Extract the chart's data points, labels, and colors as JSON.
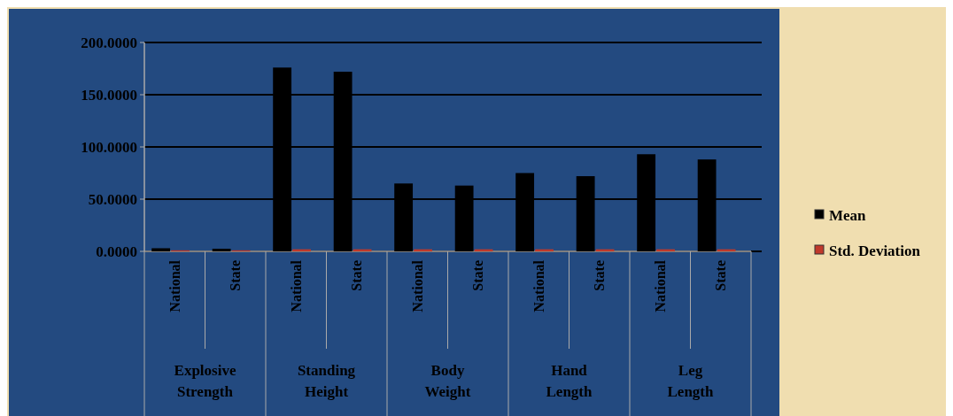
{
  "chart_data": {
    "type": "bar",
    "categories": [
      "National",
      "State",
      "National",
      "State",
      "National",
      "State",
      "National",
      "State",
      "National",
      "State"
    ],
    "annotations": [
      "Explosive Strength",
      "Standing Height",
      "Body Weight",
      "Hand Length",
      "Leg Length"
    ],
    "series": [
      {
        "name": "Mean",
        "color": "#000000",
        "values": [
          3,
          2.5,
          176,
          172,
          65,
          63,
          75,
          72,
          93,
          88
        ]
      },
      {
        "name": "Std. Deviation",
        "color": "#c0392b",
        "values": [
          1,
          1,
          2,
          2,
          2,
          2,
          2,
          2,
          2,
          2
        ]
      }
    ],
    "ylim": [
      0,
      200
    ],
    "yticks": [
      {
        "value": 0,
        "label": "0.0000"
      },
      {
        "value": 50,
        "label": "50.0000"
      },
      {
        "value": 100,
        "label": "100.0000"
      },
      {
        "value": 150,
        "label": "150.0000"
      },
      {
        "value": 200,
        "label": "200.0000"
      }
    ],
    "grid": true,
    "legend": "right"
  }
}
